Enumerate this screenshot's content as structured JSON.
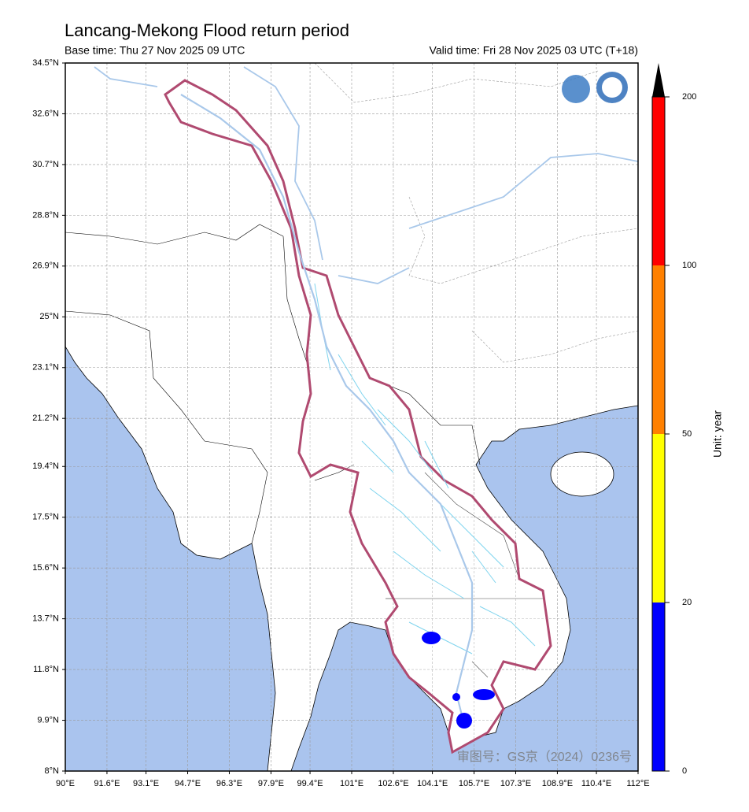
{
  "title": "Lancang-Mekong Flood return period",
  "base_time": "Base time: Thu 27 Nov 2025 09 UTC",
  "valid_time": "Valid time: Fri 28 Nov 2025 03 UTC (T+18)",
  "map": {
    "xlim": [
      90,
      112
    ],
    "ylim": [
      8,
      34.5
    ],
    "xticks": [
      {
        "value": 90,
        "label": "90°E"
      },
      {
        "value": 91.6,
        "label": "91.6°E"
      },
      {
        "value": 93.1,
        "label": "93.1°E"
      },
      {
        "value": 94.7,
        "label": "94.7°E"
      },
      {
        "value": 96.3,
        "label": "96.3°E"
      },
      {
        "value": 97.9,
        "label": "97.9°E"
      },
      {
        "value": 99.4,
        "label": "99.4°E"
      },
      {
        "value": 101,
        "label": "101°E"
      },
      {
        "value": 102.6,
        "label": "102.6°E"
      },
      {
        "value": 104.1,
        "label": "104.1°E"
      },
      {
        "value": 105.7,
        "label": "105.7°E"
      },
      {
        "value": 107.3,
        "label": "107.3°E"
      },
      {
        "value": 108.9,
        "label": "108.9°E"
      },
      {
        "value": 110.4,
        "label": "110.4°E"
      },
      {
        "value": 112,
        "label": "112°E"
      }
    ],
    "yticks": [
      {
        "value": 8,
        "label": "8°N"
      },
      {
        "value": 9.9,
        "label": "9.9°N"
      },
      {
        "value": 11.8,
        "label": "11.8°N"
      },
      {
        "value": 13.7,
        "label": "13.7°N"
      },
      {
        "value": 15.6,
        "label": "15.6°N"
      },
      {
        "value": 17.5,
        "label": "17.5°N"
      },
      {
        "value": 19.4,
        "label": "19.4°N"
      },
      {
        "value": 21.2,
        "label": "21.2°N"
      },
      {
        "value": 23.1,
        "label": "23.1°N"
      },
      {
        "value": 25,
        "label": "25°N"
      },
      {
        "value": 26.9,
        "label": "26.9°N"
      },
      {
        "value": 28.8,
        "label": "28.8°N"
      },
      {
        "value": 30.7,
        "label": "30.7°N"
      },
      {
        "value": 32.6,
        "label": "32.6°N"
      },
      {
        "value": 34.5,
        "label": "34.5°N"
      }
    ],
    "grid": true
  },
  "colorbar": {
    "label": "Unit: year",
    "ticks": [
      0,
      20,
      50,
      100,
      200
    ],
    "colors": [
      "#0000ff",
      "#ffff00",
      "#ff8000",
      "#ff0000"
    ]
  },
  "watermark": "审图号：GS京（2024）0236号"
}
